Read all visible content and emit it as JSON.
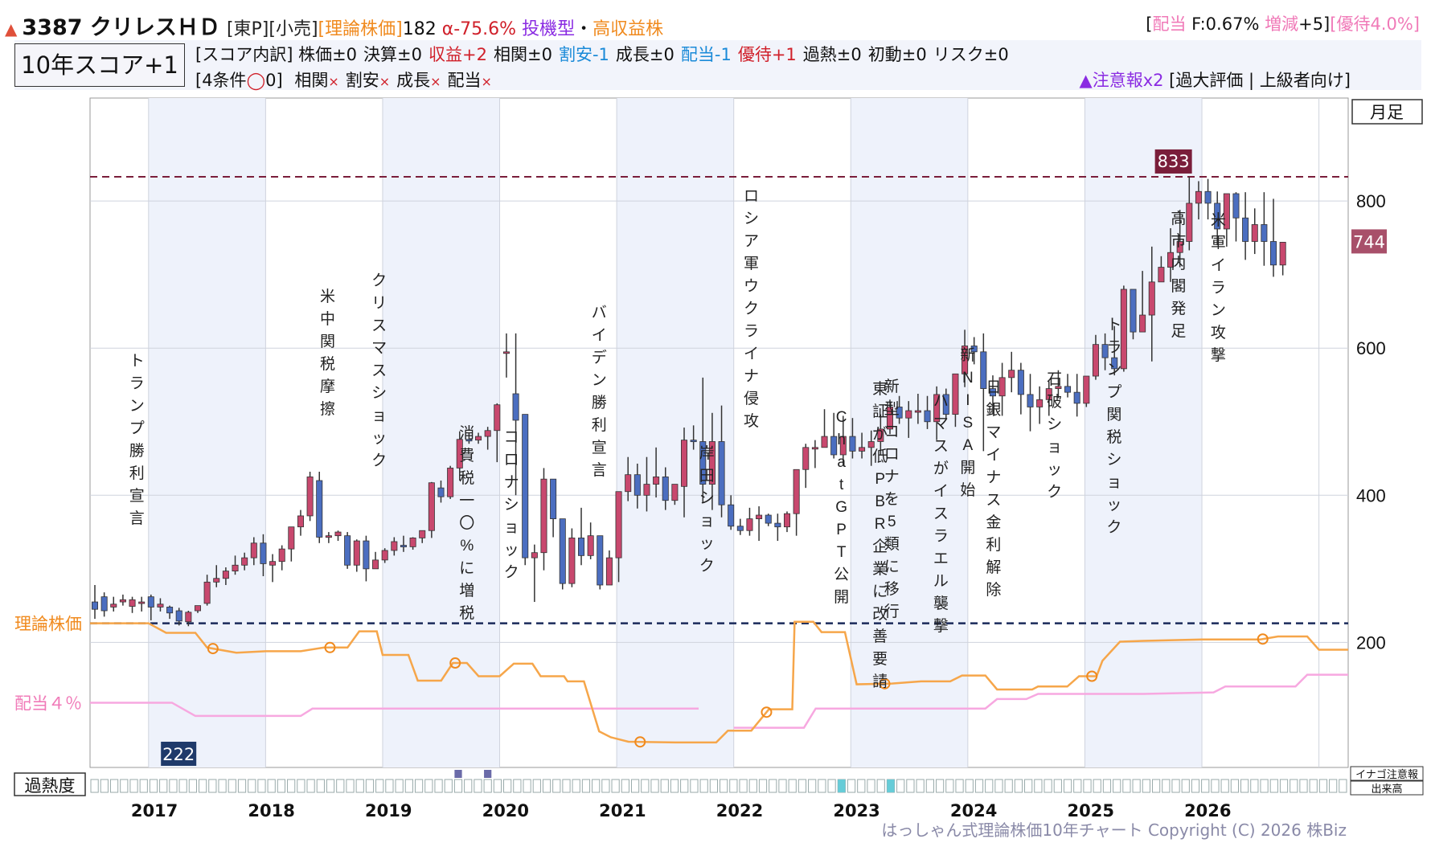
{
  "header": {
    "code_name": "3387 クリレスＨＤ",
    "tags": "[東P][小売]",
    "theory_label": "[理論株価]",
    "theory_value": "182",
    "alpha": "α-75.6%",
    "style": "投機型",
    "style_sep": "・",
    "style2": "高収益株",
    "right_open": "[",
    "dividend_label": "配当",
    "dividend_value": " F:0.67%",
    "change_label": " 増減",
    "change_value": "+5]",
    "yutai": "[優待4.0%]"
  },
  "score": {
    "box": "10年スコア+1",
    "breakdown_label": "[スコア内訳]",
    "items": [
      {
        "name": "株価",
        "val": "±0",
        "color": "#111111"
      },
      {
        "name": "決算",
        "val": "±0",
        "color": "#111111"
      },
      {
        "name": "収益",
        "val": "+2",
        "color": "#d0202a"
      },
      {
        "name": "相関",
        "val": "±0",
        "color": "#111111"
      },
      {
        "name": "割安",
        "val": "-1",
        "color": "#1a8ad8"
      },
      {
        "name": "成長",
        "val": "±0",
        "color": "#111111"
      },
      {
        "name": "配当",
        "val": "-1",
        "color": "#1a8ad8"
      },
      {
        "name": "優待",
        "val": "+1",
        "color": "#d0202a"
      },
      {
        "name": "過熱",
        "val": "±0",
        "color": "#111111"
      },
      {
        "name": "初動",
        "val": "±0",
        "color": "#111111"
      },
      {
        "name": "リスク",
        "val": "±0",
        "color": "#111111"
      }
    ],
    "conditions": "[4条件",
    "circle": "◯",
    "conditions_count": "0]",
    "cond_items": [
      "相関",
      "割安",
      "成長",
      "配当"
    ],
    "cross": "×",
    "caution": "▲注意報x2",
    "caution_tail": " [過大評価 | 上級者向け]"
  },
  "chart_data": {
    "type": "candlestick",
    "period": "月足",
    "x_years": [
      "2017",
      "2018",
      "2019",
      "2020",
      "2021",
      "2022",
      "2023",
      "2024",
      "2025",
      "2026"
    ],
    "y_ticks": [
      200,
      400,
      600,
      800
    ],
    "y_range": [
      30,
      940
    ],
    "high_marker": 833,
    "low_marker": 222,
    "last_price": 744,
    "theory_line_value": 226,
    "theory_line_label": "理論株価",
    "dividend_label": "配当４％",
    "heat_label": "過熱度",
    "legend_boxes": [
      "イナゴ注意報",
      "出来高"
    ],
    "candles": [
      [
        255,
        278,
        245,
        232
      ],
      [
        262,
        268,
        243,
        235
      ],
      [
        248,
        262,
        252,
        242
      ],
      [
        255,
        265,
        258,
        250
      ],
      [
        249,
        262,
        258,
        240
      ],
      [
        255,
        262,
        255,
        242
      ],
      [
        262,
        265,
        248,
        230
      ],
      [
        248,
        260,
        252,
        242
      ],
      [
        248,
        250,
        240,
        232
      ],
      [
        243,
        247,
        229,
        223
      ],
      [
        228,
        243,
        241,
        222
      ],
      [
        243,
        250,
        250,
        240
      ],
      [
        253,
        292,
        282,
        250
      ],
      [
        282,
        305,
        287,
        275
      ],
      [
        287,
        302,
        297,
        278
      ],
      [
        297,
        318,
        305,
        292
      ],
      [
        305,
        322,
        315,
        298
      ],
      [
        315,
        343,
        335,
        305
      ],
      [
        335,
        347,
        307,
        290
      ],
      [
        305,
        320,
        310,
        282
      ],
      [
        310,
        332,
        327,
        298
      ],
      [
        327,
        357,
        357,
        310
      ],
      [
        357,
        380,
        372,
        345
      ],
      [
        372,
        432,
        425,
        365
      ],
      [
        420,
        432,
        343,
        335
      ],
      [
        343,
        350,
        345,
        335
      ],
      [
        345,
        352,
        350,
        338
      ],
      [
        345,
        350,
        305,
        300
      ],
      [
        305,
        340,
        338,
        296
      ],
      [
        338,
        345,
        300,
        283
      ],
      [
        300,
        323,
        312,
        300
      ],
      [
        312,
        328,
        325,
        308
      ],
      [
        325,
        343,
        337,
        318
      ],
      [
        332,
        345,
        330,
        323
      ],
      [
        330,
        343,
        342,
        326
      ],
      [
        342,
        352,
        352,
        335
      ],
      [
        352,
        418,
        417,
        342
      ],
      [
        410,
        420,
        398,
        390
      ],
      [
        398,
        440,
        437,
        395
      ],
      [
        437,
        487,
        476,
        420
      ],
      [
        476,
        485,
        475,
        470
      ],
      [
        475,
        485,
        480,
        470
      ],
      [
        480,
        493,
        488,
        462
      ],
      [
        488,
        525,
        523,
        445
      ],
      [
        595,
        620,
        595,
        560
      ],
      [
        538,
        620,
        502,
        400
      ],
      [
        510,
        433,
        315,
        305
      ],
      [
        315,
        333,
        322,
        255
      ],
      [
        322,
        437,
        422,
        298
      ],
      [
        422,
        402,
        368,
        343
      ],
      [
        368,
        355,
        280,
        272
      ],
      [
        280,
        355,
        342,
        275
      ],
      [
        342,
        383,
        318,
        305
      ],
      [
        318,
        363,
        345,
        313
      ],
      [
        345,
        340,
        278,
        272
      ],
      [
        278,
        325,
        315,
        283
      ],
      [
        315,
        405,
        405,
        282
      ],
      [
        405,
        452,
        428,
        392
      ],
      [
        428,
        443,
        400,
        382
      ],
      [
        400,
        452,
        415,
        378
      ],
      [
        415,
        465,
        425,
        397
      ],
      [
        425,
        438,
        393,
        380
      ],
      [
        393,
        412,
        415,
        387
      ],
      [
        412,
        492,
        475,
        370
      ],
      [
        475,
        495,
        473,
        462
      ],
      [
        473,
        560,
        415,
        390
      ],
      [
        415,
        512,
        473,
        380
      ],
      [
        473,
        522,
        387,
        370
      ],
      [
        387,
        400,
        358,
        353
      ],
      [
        358,
        368,
        352,
        346
      ],
      [
        352,
        383,
        368,
        345
      ],
      [
        368,
        385,
        373,
        338
      ],
      [
        373,
        375,
        362,
        358
      ],
      [
        362,
        375,
        357,
        338
      ],
      [
        357,
        378,
        375,
        350
      ],
      [
        375,
        435,
        435,
        345
      ],
      [
        435,
        470,
        465,
        410
      ],
      [
        465,
        475,
        465,
        437
      ],
      [
        465,
        517,
        480,
        465
      ],
      [
        480,
        512,
        455,
        450
      ],
      [
        455,
        508,
        480,
        440
      ],
      [
        480,
        505,
        460,
        450
      ],
      [
        460,
        485,
        465,
        450
      ],
      [
        465,
        488,
        473,
        440
      ],
      [
        473,
        510,
        490,
        455
      ],
      [
        490,
        530,
        520,
        483
      ],
      [
        520,
        535,
        505,
        497
      ],
      [
        505,
        528,
        515,
        478
      ],
      [
        515,
        538,
        515,
        497
      ],
      [
        515,
        535,
        500,
        490
      ],
      [
        500,
        548,
        537,
        475
      ],
      [
        537,
        545,
        510,
        503
      ],
      [
        510,
        540,
        565,
        493
      ],
      [
        565,
        625,
        603,
        547
      ],
      [
        603,
        615,
        595,
        578
      ],
      [
        595,
        620,
        545,
        460
      ],
      [
        545,
        563,
        535,
        510
      ],
      [
        535,
        580,
        560,
        508
      ],
      [
        560,
        595,
        570,
        540
      ],
      [
        570,
        580,
        537,
        510
      ],
      [
        537,
        565,
        520,
        487
      ],
      [
        520,
        548,
        530,
        497
      ],
      [
        530,
        555,
        545,
        508
      ],
      [
        545,
        570,
        548,
        532
      ],
      [
        548,
        565,
        540,
        533
      ],
      [
        540,
        565,
        525,
        507
      ],
      [
        525,
        560,
        562,
        520
      ],
      [
        562,
        618,
        605,
        557
      ],
      [
        605,
        620,
        587,
        570
      ],
      [
        587,
        630,
        572,
        563
      ],
      [
        572,
        685,
        680,
        568
      ],
      [
        680,
        680,
        622,
        612
      ],
      [
        622,
        705,
        645,
        630
      ],
      [
        645,
        738,
        690,
        582
      ],
      [
        690,
        725,
        710,
        690
      ],
      [
        710,
        763,
        730,
        690
      ],
      [
        730,
        788,
        745,
        710
      ],
      [
        745,
        833,
        797,
        733
      ],
      [
        797,
        827,
        813,
        775
      ],
      [
        813,
        830,
        797,
        775
      ],
      [
        797,
        813,
        762,
        740
      ],
      [
        762,
        808,
        810,
        738
      ],
      [
        810,
        812,
        777,
        745
      ],
      [
        777,
        812,
        745,
        720
      ],
      [
        745,
        790,
        768,
        728
      ],
      [
        768,
        812,
        745,
        712
      ],
      [
        745,
        803,
        713,
        697
      ],
      [
        713,
        718,
        744,
        699
      ]
    ],
    "events": [
      {
        "label": "トランプ勝利宣言",
        "year": 2016.9
      },
      {
        "label": "米中関税摩擦",
        "year": 2018.53
      },
      {
        "label": "クリスマスショック",
        "year": 2018.97
      },
      {
        "label": "消費税一〇%に増税",
        "year": 2019.72
      },
      {
        "label": "コロナショック",
        "year": 2020.1
      },
      {
        "label": "バイデン勝利宣言",
        "year": 2020.85
      },
      {
        "label": "岸田ショック",
        "year": 2021.77
      },
      {
        "label": "ロシア軍ウクライナ侵攻",
        "year": 2022.15
      },
      {
        "label": "ChatGPT公開",
        "year": 2022.92
      },
      {
        "label": "東証が低PBR企業に改善要請",
        "year": 2023.25
      },
      {
        "label": "新型コロナを5類に移行",
        "year": 2023.35
      },
      {
        "label": "ハマスがイスラエル襲撃",
        "year": 2023.77
      },
      {
        "label": "新NISA開始",
        "year": 2024.0
      },
      {
        "label": "日銀マイナス金利解除",
        "year": 2024.22
      },
      {
        "label": "石破ショック",
        "year": 2024.74
      },
      {
        "label": "トランプ関税ショック",
        "year": 2025.25
      },
      {
        "label": "高市内閣発足",
        "year": 2025.8
      },
      {
        "label": "米軍イラン攻撃",
        "year": 2026.14
      }
    ],
    "theory_series": [
      [
        2016.5,
        226
      ],
      [
        2017.0,
        226
      ],
      [
        2017.15,
        213
      ],
      [
        2017.4,
        213
      ],
      [
        2017.5,
        193
      ],
      [
        2017.75,
        186
      ],
      [
        2018.0,
        188
      ],
      [
        2018.3,
        188
      ],
      [
        2018.5,
        193
      ],
      [
        2018.7,
        193
      ],
      [
        2018.8,
        215
      ],
      [
        2018.95,
        215
      ],
      [
        2019.0,
        183
      ],
      [
        2019.22,
        183
      ],
      [
        2019.3,
        148
      ],
      [
        2019.5,
        148
      ],
      [
        2019.6,
        172
      ],
      [
        2019.72,
        172
      ],
      [
        2019.82,
        154
      ],
      [
        2020.0,
        154
      ],
      [
        2020.12,
        171
      ],
      [
        2020.28,
        171
      ],
      [
        2020.35,
        154
      ],
      [
        2020.55,
        154
      ],
      [
        2020.58,
        147
      ],
      [
        2020.72,
        147
      ],
      [
        2020.85,
        79
      ],
      [
        2020.95,
        71
      ],
      [
        2021.1,
        65
      ],
      [
        2021.5,
        64
      ],
      [
        2021.85,
        64
      ],
      [
        2021.95,
        80
      ],
      [
        2022.15,
        80
      ],
      [
        2022.3,
        109
      ],
      [
        2022.5,
        109
      ],
      [
        2022.52,
        228
      ],
      [
        2022.68,
        228
      ],
      [
        2022.75,
        214
      ],
      [
        2022.95,
        214
      ],
      [
        2023.05,
        143
      ],
      [
        2023.35,
        144
      ],
      [
        2023.6,
        147
      ],
      [
        2023.85,
        147
      ],
      [
        2023.95,
        155
      ],
      [
        2024.15,
        155
      ],
      [
        2024.25,
        136
      ],
      [
        2024.55,
        136
      ],
      [
        2024.6,
        140
      ],
      [
        2024.85,
        140
      ],
      [
        2024.95,
        154
      ],
      [
        2025.1,
        154
      ],
      [
        2025.15,
        175
      ],
      [
        2025.3,
        201
      ],
      [
        2025.5,
        202
      ],
      [
        2026.0,
        204
      ],
      [
        2026.5,
        204
      ],
      [
        2026.65,
        208
      ],
      [
        2026.9,
        208
      ],
      [
        2027.0,
        190
      ],
      [
        2027.25,
        190
      ]
    ],
    "theory_markers": [
      2017.55,
      2018.55,
      2019.62,
      2021.2,
      2022.28,
      2023.29,
      2025.06,
      2026.52
    ],
    "dividend_series": [
      [
        [
          2016.5,
          118
        ],
        [
          2017.2,
          118
        ],
        [
          2017.4,
          100
        ],
        [
          2018.0,
          100
        ],
        [
          2018.0,
          100
        ],
        [
          2018.3,
          100
        ],
        [
          2018.4,
          110
        ],
        [
          2018.8,
          110
        ],
        [
          2019.0,
          110
        ],
        [
          2019.22,
          110
        ],
        [
          2019.3,
          110
        ],
        [
          2019.6,
          110
        ],
        [
          2019.95,
          110
        ],
        [
          2020.5,
          110
        ],
        [
          2021.1,
          110
        ],
        [
          2021.7,
          110
        ]
      ],
      [
        [
          2022.0,
          84
        ],
        [
          2022.6,
          84
        ],
        [
          2022.7,
          110
        ],
        [
          2023.0,
          110
        ],
        [
          2023.3,
          110
        ],
        [
          2023.8,
          110
        ],
        [
          2024.15,
          110
        ],
        [
          2024.25,
          123
        ],
        [
          2024.5,
          123
        ],
        [
          2024.6,
          130
        ],
        [
          2025.0,
          130
        ],
        [
          2025.5,
          130
        ],
        [
          2026.1,
          132
        ],
        [
          2026.2,
          140
        ],
        [
          2026.8,
          140
        ],
        [
          2026.9,
          156
        ],
        [
          2027.25,
          156
        ]
      ]
    ],
    "heat_highlights": [
      {
        "index": 37,
        "color": "#6a6aa8"
      },
      {
        "index": 40,
        "color": "#6a6aa8"
      },
      {
        "index": 76,
        "color": "#66ccd8"
      },
      {
        "index": 81,
        "color": "#66ccd8"
      }
    ]
  },
  "footer": "はっしゃん式理論株価10年チャート Copyright (C) 2026 株Biz"
}
